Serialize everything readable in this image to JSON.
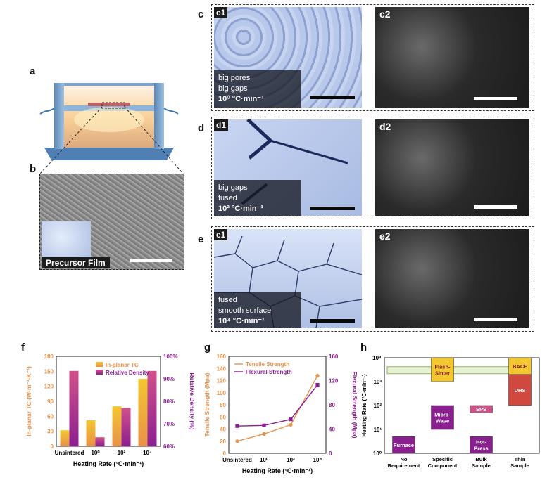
{
  "panel_letters": {
    "a": "a",
    "b": "b",
    "c": "c",
    "d": "d",
    "e": "e",
    "f": "f",
    "g": "g",
    "h": "h"
  },
  "sub_labels": {
    "c1": "c1",
    "c2": "c2",
    "d1": "d1",
    "d2": "d2",
    "e1": "e1",
    "e2": "e2"
  },
  "b_inset_label": "Precursor Film",
  "captions": {
    "c1": [
      "big pores",
      "big gaps",
      "10⁰ °C·min⁻¹"
    ],
    "d1": [
      "big gaps",
      "fused",
      "10² °C·min⁻¹"
    ],
    "e1": [
      "fused",
      "smooth surface",
      "10⁴ °C·min⁻¹"
    ]
  },
  "colors": {
    "orange": "#e8914a",
    "purple": "#8a1f8f",
    "pink": "#d0508a",
    "yellow": "#f3c72f"
  },
  "chart_data": [
    {
      "type": "bar",
      "categories": [
        "Unsintered",
        "10⁰",
        "10²",
        "10⁴"
      ],
      "series": [
        {
          "name": "In-planar TC",
          "values": [
            32,
            52,
            80,
            135
          ]
        },
        {
          "name": "Relative Density",
          "values": [
            93.5,
            64,
            77,
            93.5
          ]
        }
      ],
      "xlabel": "Heating Rate (°C·min⁻¹)",
      "ylabel": "In-planar TC (W·m⁻¹·K⁻¹)",
      "y2label": "Relative Density (%)",
      "yticks": [
        "0",
        "30",
        "60",
        "90",
        "120",
        "150",
        "180"
      ],
      "y2ticks": [
        "60%",
        "70%",
        "80%",
        "90%",
        "100%"
      ],
      "ylim": [
        0,
        180
      ],
      "y2lim": [
        60,
        100
      ],
      "legend": "top-left"
    },
    {
      "type": "line",
      "categories": [
        "Unsintered",
        "10⁰",
        "10²",
        "10⁴"
      ],
      "series": [
        {
          "name": "Tensile Strength",
          "values": [
            20,
            32,
            47,
            128
          ]
        },
        {
          "name": "Flexural Strength",
          "values": [
            45,
            46,
            56,
            113
          ]
        }
      ],
      "xlabel": "Heating Rate (°C·min⁻¹)",
      "ylabel": "Tensile Strength (Mpa)",
      "y2label": "Flexural Strength (Mpa)",
      "yticks": [
        "0",
        "20",
        "40",
        "60",
        "80",
        "100",
        "120",
        "140",
        "160"
      ],
      "y2ticks": [
        "0",
        "40",
        "80",
        "120",
        "160"
      ],
      "ylim": [
        0,
        160
      ],
      "y2lim": [
        0,
        160
      ],
      "legend": "top-left"
    },
    {
      "type": "bar",
      "categories": [
        "No Requirement",
        "Specific Component",
        "Bulk Sample",
        "Thin Sample"
      ],
      "boxes": [
        {
          "label": "Furnace",
          "category": "No Requirement",
          "low": 1,
          "high": 5
        },
        {
          "label": "Micro-Wave",
          "category": "Specific Component",
          "low": 10,
          "high": 100
        },
        {
          "label": "Flash-Sinter",
          "category": "Specific Component",
          "low": 1000,
          "high": 10000
        },
        {
          "label": "SPS",
          "category": "Bulk Sample",
          "low": 50,
          "high": 100
        },
        {
          "label": "Hot-Press",
          "category": "Bulk Sample",
          "low": 1,
          "high": 5
        },
        {
          "label": "UHS",
          "category": "Thin Sample",
          "low": 100,
          "high": 2000
        },
        {
          "label": "BACF",
          "category": "Thin Sample",
          "low": 2000,
          "high": 10000
        }
      ],
      "ylabel": "Heating Rate (°C·min⁻¹)",
      "yticks": [
        "10⁰",
        "10¹",
        "10²",
        "10³",
        "10⁴"
      ],
      "ylim": [
        1,
        10000
      ],
      "yscale": "log"
    }
  ]
}
